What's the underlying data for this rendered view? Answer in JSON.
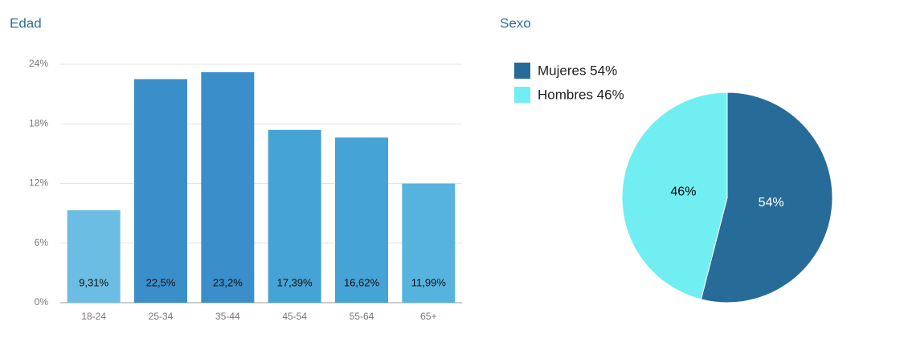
{
  "chart_data": [
    {
      "type": "bar",
      "title": "Edad",
      "categories": [
        "18-24",
        "25-34",
        "35-44",
        "45-54",
        "55-64",
        "65+"
      ],
      "values": [
        9.31,
        22.5,
        23.2,
        17.39,
        16.62,
        11.99
      ],
      "value_labels": [
        "9,31%",
        "22,5%",
        "23,2%",
        "17,39%",
        "16,62%",
        "11,99%"
      ],
      "colors": [
        "#6bbde3",
        "#3a8fcb",
        "#3a8fcb",
        "#45a3d5",
        "#45a3d5",
        "#55b3de"
      ],
      "ylim": [
        0,
        24
      ],
      "yticks": [
        {
          "value": 0,
          "label": "0%"
        },
        {
          "value": 6,
          "label": "6%"
        },
        {
          "value": 12,
          "label": "12%"
        },
        {
          "value": 18,
          "label": "18%"
        },
        {
          "value": 24,
          "label": "24%"
        }
      ],
      "grid": true
    },
    {
      "type": "pie",
      "title": "Sexo",
      "labels": [
        "Mujeres 54%",
        "Hombres 46%"
      ],
      "values": [
        54,
        46
      ],
      "value_labels": [
        "54%",
        "46%"
      ],
      "colors": [
        "#276b98",
        "#71eef2"
      ],
      "label_colors": [
        "#ffffff",
        "#000000"
      ],
      "legend": "top-left"
    }
  ]
}
